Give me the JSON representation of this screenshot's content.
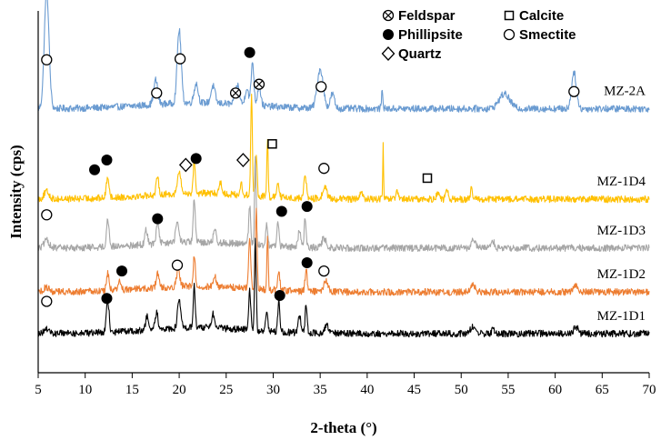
{
  "chart_data": {
    "type": "line",
    "xlabel": "2-theta (°)",
    "ylabel": "Intensity (cps)",
    "xlim": [
      5,
      70
    ],
    "x_ticks": [
      "5",
      "10",
      "15",
      "20",
      "25",
      "30",
      "35",
      "40",
      "45",
      "50",
      "55",
      "60",
      "65",
      "70"
    ],
    "grid": false,
    "legend_position": "top-right",
    "legend": [
      {
        "symbol": "circle-x",
        "label": "Feldspar"
      },
      {
        "symbol": "square",
        "label": "Calcite"
      },
      {
        "symbol": "filled-circle",
        "label": "Phillipsite"
      },
      {
        "symbol": "open-circle",
        "label": "Smectite"
      },
      {
        "symbol": "diamond",
        "label": "Quartz"
      }
    ],
    "series": [
      {
        "name": "MZ-2A",
        "color": "#6a9bd1",
        "baseline": 4.3,
        "peaks": [
          [
            5.9,
            2.4,
            0.35
          ],
          [
            17.5,
            0.5,
            0.3
          ],
          [
            20.0,
            1.5,
            0.3
          ],
          [
            21.8,
            0.4,
            0.3
          ],
          [
            23.6,
            0.35,
            0.3
          ],
          [
            26.2,
            0.4,
            0.3
          ],
          [
            27.2,
            0.35,
            0.25
          ],
          [
            27.8,
            0.9,
            0.2
          ],
          [
            28.5,
            0.4,
            0.25
          ],
          [
            35.0,
            0.8,
            0.45
          ],
          [
            36.3,
            0.3,
            0.3
          ],
          [
            41.6,
            0.35,
            0.12
          ],
          [
            54.6,
            0.3,
            0.8
          ],
          [
            62.0,
            0.75,
            0.35
          ]
        ],
        "markers": [
          [
            5.9,
            "open-circle",
            5.3
          ],
          [
            17.6,
            "open-circle",
            4.62
          ],
          [
            20.1,
            "open-circle",
            5.32
          ],
          [
            26.0,
            "circle-x",
            4.62
          ],
          [
            27.5,
            "filled-circle",
            5.45
          ],
          [
            28.5,
            "circle-x",
            4.8
          ],
          [
            35.1,
            "open-circle",
            4.75
          ],
          [
            62.0,
            "open-circle",
            4.65
          ]
        ]
      },
      {
        "name": "MZ-1D4",
        "color": "#ffc000",
        "baseline": 2.45,
        "peaks": [
          [
            5.9,
            0.15,
            0.4
          ],
          [
            12.4,
            0.45,
            0.2
          ],
          [
            17.7,
            0.35,
            0.2
          ],
          [
            20.0,
            0.45,
            0.25
          ],
          [
            21.6,
            0.7,
            0.15
          ],
          [
            24.4,
            0.25,
            0.2
          ],
          [
            26.6,
            0.25,
            0.15
          ],
          [
            27.7,
            2.1,
            0.12
          ],
          [
            28.2,
            0.9,
            0.12
          ],
          [
            29.4,
            1.15,
            0.1
          ],
          [
            30.5,
            0.3,
            0.2
          ],
          [
            33.4,
            0.45,
            0.2
          ],
          [
            35.5,
            0.25,
            0.3
          ],
          [
            39.4,
            0.2,
            0.15
          ],
          [
            41.7,
            1.15,
            0.06
          ],
          [
            43.2,
            0.15,
            0.15
          ],
          [
            47.5,
            0.15,
            0.2
          ],
          [
            48.5,
            0.15,
            0.2
          ],
          [
            51.1,
            0.3,
            0.1
          ]
        ],
        "markers": [
          [
            11.0,
            "filled-circle",
            3.05
          ],
          [
            12.3,
            "filled-circle",
            3.25
          ],
          [
            20.7,
            "diamond",
            3.15
          ],
          [
            21.8,
            "filled-circle",
            3.28
          ],
          [
            26.8,
            "diamond",
            3.25
          ],
          [
            29.9,
            "square",
            3.58
          ],
          [
            35.4,
            "open-circle",
            3.08
          ],
          [
            46.4,
            "square",
            2.88
          ]
        ]
      },
      {
        "name": "MZ-1D3",
        "color": "#a6a6a6",
        "baseline": 1.45,
        "peaks": [
          [
            5.9,
            0.15,
            0.4
          ],
          [
            12.4,
            0.55,
            0.2
          ],
          [
            16.5,
            0.3,
            0.2
          ],
          [
            17.7,
            0.45,
            0.2
          ],
          [
            19.8,
            0.4,
            0.25
          ],
          [
            21.6,
            0.9,
            0.15
          ],
          [
            23.8,
            0.3,
            0.2
          ],
          [
            27.5,
            0.8,
            0.15
          ],
          [
            28.1,
            1.85,
            0.12
          ],
          [
            29.3,
            0.4,
            0.15
          ],
          [
            30.5,
            0.5,
            0.15
          ],
          [
            32.8,
            0.35,
            0.2
          ],
          [
            33.4,
            0.6,
            0.15
          ],
          [
            35.4,
            0.2,
            0.3
          ],
          [
            51.3,
            0.15,
            0.3
          ],
          [
            53.4,
            0.15,
            0.2
          ]
        ],
        "markers": [
          [
            5.9,
            "open-circle",
            2.13
          ],
          [
            17.7,
            "filled-circle",
            2.05
          ],
          [
            30.9,
            "filled-circle",
            2.2
          ],
          [
            33.6,
            "filled-circle",
            2.3
          ]
        ]
      },
      {
        "name": "MZ-1D2",
        "color": "#ed7d31",
        "baseline": 0.55,
        "peaks": [
          [
            5.9,
            0.1,
            0.4
          ],
          [
            12.4,
            0.35,
            0.2
          ],
          [
            13.7,
            0.2,
            0.2
          ],
          [
            17.7,
            0.3,
            0.2
          ],
          [
            19.9,
            0.35,
            0.25
          ],
          [
            21.6,
            0.65,
            0.15
          ],
          [
            23.8,
            0.2,
            0.2
          ],
          [
            27.5,
            1.05,
            0.15
          ],
          [
            28.2,
            1.7,
            0.12
          ],
          [
            29.4,
            1.05,
            0.1
          ],
          [
            30.6,
            0.4,
            0.15
          ],
          [
            33.5,
            0.45,
            0.15
          ],
          [
            35.6,
            0.25,
            0.3
          ],
          [
            51.3,
            0.15,
            0.3
          ],
          [
            62.1,
            0.15,
            0.3
          ]
        ],
        "markers": [
          [
            13.9,
            "filled-circle",
            0.98
          ],
          [
            19.8,
            "open-circle",
            1.1
          ],
          [
            33.6,
            "filled-circle",
            1.15
          ],
          [
            35.4,
            "open-circle",
            0.98
          ]
        ]
      },
      {
        "name": "MZ-1D1",
        "color": "#000000",
        "baseline": -0.3,
        "peaks": [
          [
            5.9,
            0.1,
            0.4
          ],
          [
            12.4,
            0.65,
            0.2
          ],
          [
            16.6,
            0.3,
            0.2
          ],
          [
            17.6,
            0.35,
            0.2
          ],
          [
            20.0,
            0.55,
            0.25
          ],
          [
            21.6,
            0.85,
            0.15
          ],
          [
            23.6,
            0.3,
            0.2
          ],
          [
            27.5,
            0.85,
            0.15
          ],
          [
            28.1,
            1.95,
            0.12
          ],
          [
            29.3,
            0.4,
            0.15
          ],
          [
            30.6,
            0.65,
            0.15
          ],
          [
            32.8,
            0.35,
            0.2
          ],
          [
            33.5,
            0.55,
            0.15
          ],
          [
            35.7,
            0.15,
            0.3
          ],
          [
            51.2,
            0.15,
            0.3
          ],
          [
            53.4,
            0.1,
            0.2
          ],
          [
            62.2,
            0.15,
            0.3
          ]
        ],
        "markers": [
          [
            5.9,
            "open-circle",
            0.36
          ],
          [
            12.3,
            "filled-circle",
            0.42
          ],
          [
            30.7,
            "filled-circle",
            0.48
          ]
        ]
      }
    ]
  }
}
